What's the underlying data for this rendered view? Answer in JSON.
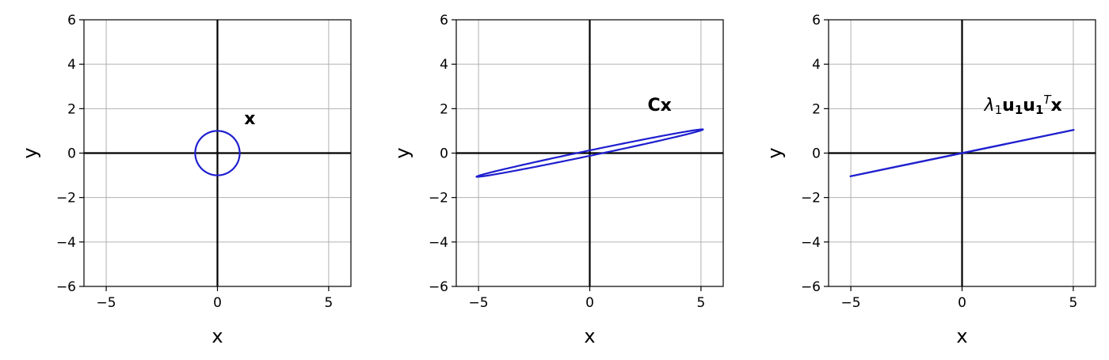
{
  "chart_data": [
    {
      "type": "line",
      "xlabel": "x",
      "ylabel": "y",
      "xlim": [
        -6,
        6
      ],
      "ylim": [
        -6,
        6
      ],
      "xticks": [
        -5,
        0,
        5
      ],
      "yticks": [
        -6,
        -4,
        -2,
        0,
        2,
        4,
        6
      ],
      "grid": true,
      "line_color": "#1f1fcf",
      "curve": {
        "kind": "ellipse",
        "center": [
          0,
          0
        ],
        "semi_major": 1.0,
        "semi_minor": 1.0,
        "angle_deg": 0
      },
      "annotation": {
        "parts": [
          {
            "text": "x",
            "style": "bold"
          }
        ],
        "x": 1.2,
        "y": 1.3
      }
    },
    {
      "type": "line",
      "xlabel": "x",
      "ylabel": "y",
      "xlim": [
        -6,
        6
      ],
      "ylim": [
        -6,
        6
      ],
      "xticks": [
        -5,
        0,
        5
      ],
      "yticks": [
        -6,
        -4,
        -2,
        0,
        2,
        4,
        6
      ],
      "grid": true,
      "line_color": "#1f1fcf",
      "curve": {
        "kind": "ellipse",
        "center": [
          0,
          0
        ],
        "semi_major": 5.2,
        "semi_minor": 0.12,
        "angle_deg": 11.8
      },
      "annotation": {
        "parts": [
          {
            "text": "Cx",
            "style": "bold"
          }
        ],
        "x": 2.6,
        "y": 1.9
      }
    },
    {
      "type": "line",
      "xlabel": "x",
      "ylabel": "y",
      "xlim": [
        -6,
        6
      ],
      "ylim": [
        -6,
        6
      ],
      "xticks": [
        -5,
        0,
        5
      ],
      "yticks": [
        -6,
        -4,
        -2,
        0,
        2,
        4,
        6
      ],
      "grid": true,
      "line_color": "#1f1fcf",
      "curve": {
        "kind": "segment",
        "points": [
          [
            -5.05,
            -1.05
          ],
          [
            5.05,
            1.05
          ]
        ]
      },
      "annotation": {
        "parts": [
          {
            "text": "λ",
            "style": "italic"
          },
          {
            "text": "1",
            "style": "sub"
          },
          {
            "text": "u",
            "style": "bold"
          },
          {
            "text": "1",
            "style": "bold-sub"
          },
          {
            "text": "u",
            "style": "bold"
          },
          {
            "text": "1",
            "style": "bold-sub"
          },
          {
            "text": "T",
            "style": "italic-sup"
          },
          {
            "text": "x",
            "style": "bold"
          }
        ],
        "x": 1.0,
        "y": 1.9
      }
    }
  ]
}
